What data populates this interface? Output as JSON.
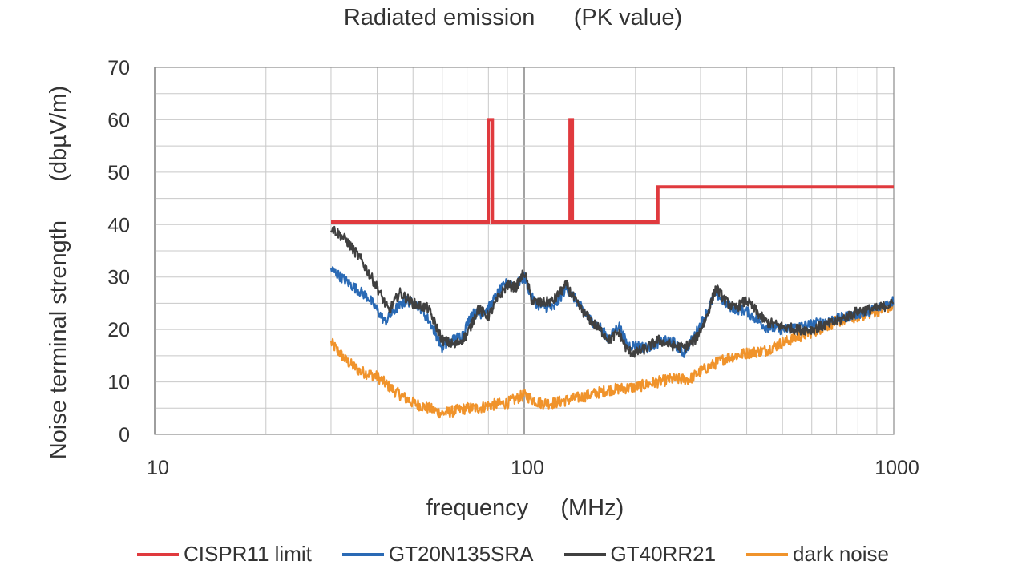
{
  "chart_data": {
    "type": "line",
    "title": "Radiated emission      (PK value)",
    "xlabel": "frequency     (MHz)",
    "ylabel": "Noise terminal strength      (dbµV/m)",
    "xscale": "log",
    "xlim": [
      10,
      1000
    ],
    "ylim": [
      0,
      70
    ],
    "x_ticks": [
      10,
      100,
      1000
    ],
    "x_tick_labels": [
      "10",
      "100",
      "1000"
    ],
    "y_ticks": [
      0,
      10,
      20,
      30,
      40,
      50,
      60,
      70
    ],
    "y_tick_labels": [
      "0",
      "10",
      "20",
      "30",
      "40",
      "50",
      "60",
      "70"
    ],
    "grid": true,
    "legend_position": "bottom",
    "series": [
      {
        "name": "CISPR11 limit",
        "color": "#e03a3e",
        "x": [
          30,
          80,
          80,
          82,
          82,
          133,
          133,
          135,
          135,
          230,
          230,
          1000
        ],
        "y": [
          40.5,
          40.5,
          60,
          60,
          40.5,
          40.5,
          60,
          60,
          40.5,
          40.5,
          47.2,
          47.2
        ]
      },
      {
        "name": "GT20N135SRA",
        "color": "#2a6ab5",
        "x": [
          30,
          34,
          38,
          42,
          45,
          48,
          52,
          56,
          60,
          64,
          68,
          72,
          76,
          80,
          85,
          90,
          95,
          100,
          105,
          110,
          120,
          130,
          140,
          150,
          160,
          170,
          180,
          190,
          200,
          215,
          230,
          250,
          270,
          290,
          310,
          330,
          350,
          370,
          400,
          450,
          500,
          550,
          600,
          700,
          800,
          900,
          1000
        ],
        "y": [
          31.5,
          28.5,
          26,
          21.5,
          24,
          25.5,
          24.5,
          21,
          16.5,
          18,
          19,
          23,
          23,
          24,
          27,
          29,
          28.5,
          30,
          26,
          24.5,
          24,
          28,
          25,
          22,
          20.5,
          18,
          21,
          17,
          17,
          16.5,
          17.5,
          18,
          15.5,
          19,
          23,
          27,
          25,
          24,
          23.5,
          20.5,
          20,
          20.5,
          21,
          22,
          23,
          24,
          25.5
        ]
      },
      {
        "name": "GT40RR21",
        "color": "#404040",
        "x": [
          30,
          33,
          36,
          40,
          43,
          46,
          50,
          55,
          60,
          65,
          70,
          75,
          80,
          85,
          90,
          95,
          100,
          105,
          110,
          120,
          130,
          140,
          150,
          160,
          170,
          180,
          190,
          200,
          215,
          230,
          250,
          270,
          290,
          310,
          330,
          350,
          370,
          400,
          450,
          500,
          550,
          600,
          700,
          800,
          900,
          1000
        ],
        "y": [
          39.5,
          37,
          33.5,
          28,
          23.5,
          27,
          25,
          24,
          18,
          17,
          19,
          24,
          22.5,
          26,
          28.5,
          28,
          31,
          25.5,
          25,
          25.5,
          28.5,
          24.5,
          22,
          20,
          18,
          19.5,
          16,
          15.5,
          16.5,
          18,
          17,
          16.5,
          18,
          22,
          28,
          25.5,
          24,
          25.5,
          21.5,
          20.5,
          20,
          20,
          21.5,
          23.5,
          24,
          25
        ]
      },
      {
        "name": "dark noise",
        "color": "#f0932b",
        "x": [
          30,
          33,
          36,
          40,
          45,
          50,
          55,
          60,
          65,
          70,
          75,
          80,
          90,
          100,
          110,
          120,
          130,
          140,
          150,
          170,
          200,
          230,
          250,
          280,
          300,
          350,
          400,
          450,
          500,
          600,
          700,
          800,
          900,
          1000
        ],
        "y": [
          17.5,
          14,
          12,
          11,
          8,
          6,
          5,
          4,
          4.5,
          5,
          5,
          5.5,
          6,
          7.5,
          6,
          6,
          6.5,
          7,
          7.5,
          8.5,
          9,
          10,
          10.5,
          10.5,
          12,
          14.5,
          15.5,
          16,
          17.5,
          19.5,
          21.5,
          22.5,
          23.5,
          24.5
        ]
      }
    ]
  }
}
